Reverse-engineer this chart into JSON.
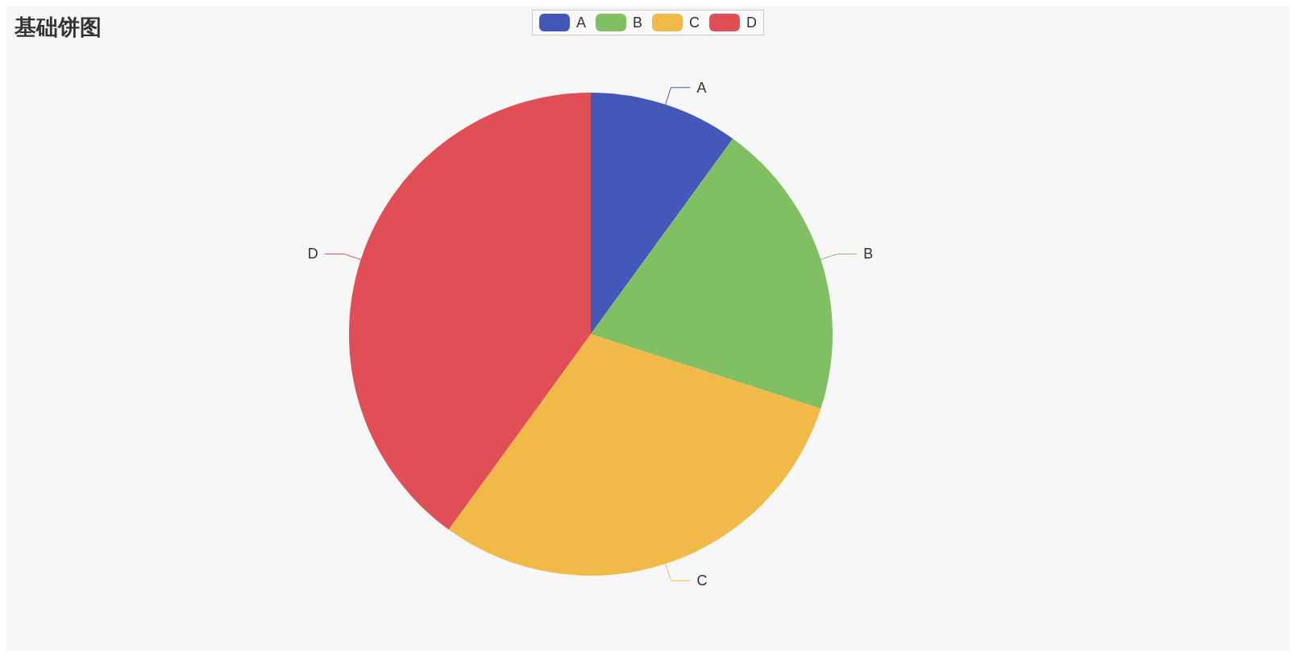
{
  "chart_data": {
    "type": "pie",
    "title": "基础饼图",
    "categories": [
      "A",
      "B",
      "C",
      "D"
    ],
    "values": [
      10,
      20,
      30,
      40
    ],
    "colors": [
      "#4358b8",
      "#80c062",
      "#f0b948",
      "#e04f55"
    ],
    "legend": "top"
  }
}
